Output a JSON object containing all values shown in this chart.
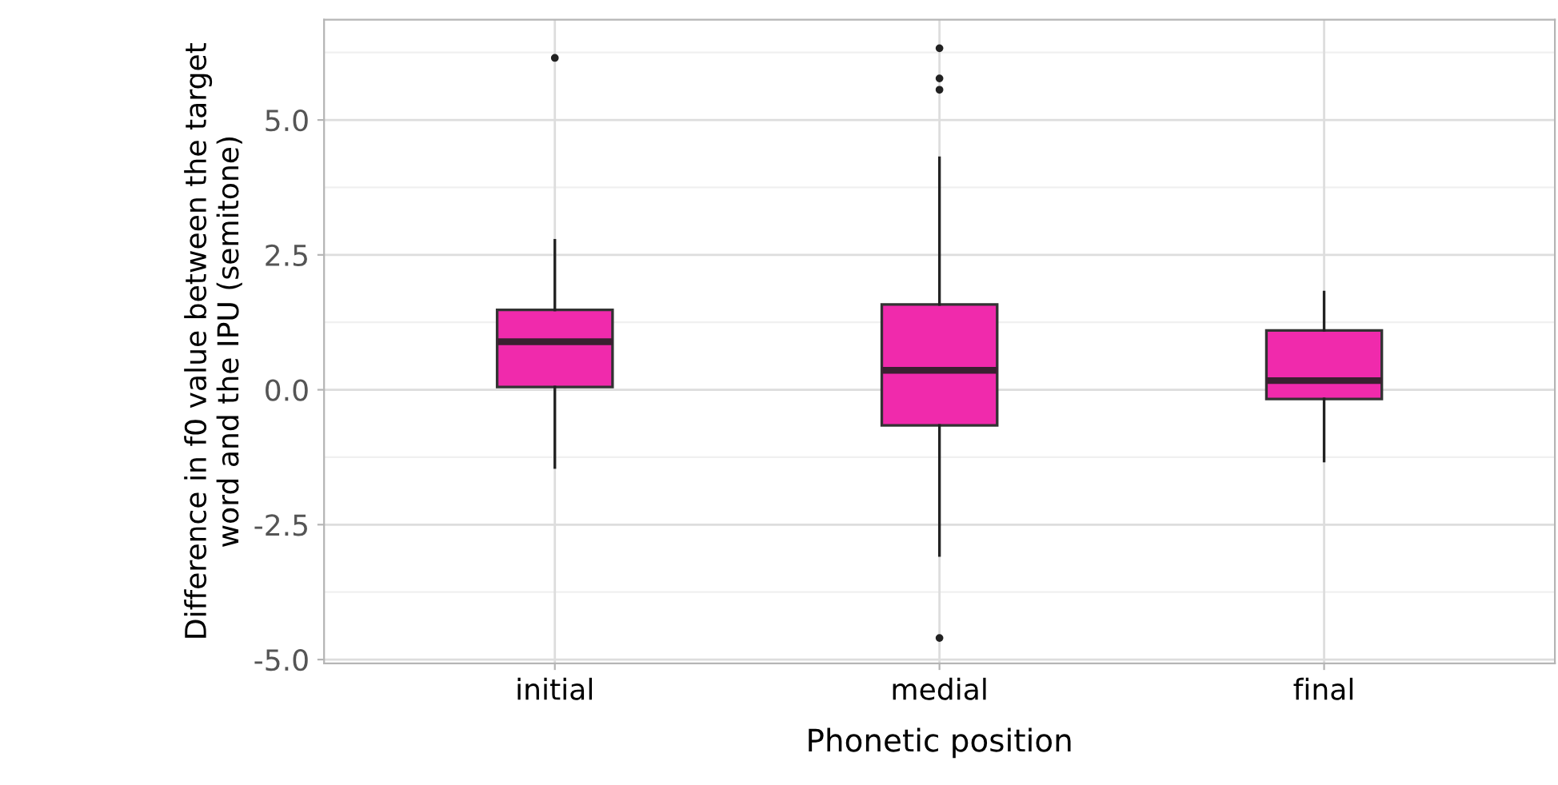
{
  "chart_data": {
    "type": "box",
    "xlabel": "Phonetic position",
    "ylabel": "Difference in f0 value between the target\nword and the IPU (semitone)",
    "categories": [
      "initial",
      "medial",
      "final"
    ],
    "boxes": [
      {
        "low": -1.44,
        "q1": 0.05,
        "median": 0.89,
        "q3": 1.48,
        "high": 2.77,
        "outliers": [
          6.15
        ]
      },
      {
        "low": -3.07,
        "q1": -0.66,
        "median": 0.36,
        "q3": 1.58,
        "high": 4.3,
        "outliers": [
          6.33,
          5.77,
          5.56,
          -4.6
        ]
      },
      {
        "low": -1.32,
        "q1": -0.17,
        "median": 0.17,
        "q3": 1.1,
        "high": 1.81
      }
    ],
    "color": "#f02aac",
    "ylim": [
      -5.07,
      6.86
    ],
    "yticks": [
      {
        "value": -5,
        "label": "-5.0"
      },
      {
        "value": -2.5,
        "label": "-2.5"
      },
      {
        "value": 0,
        "label": "0.0"
      },
      {
        "value": 2.5,
        "label": "2.5"
      },
      {
        "value": 5,
        "label": "5.0"
      }
    ],
    "grid": true
  }
}
